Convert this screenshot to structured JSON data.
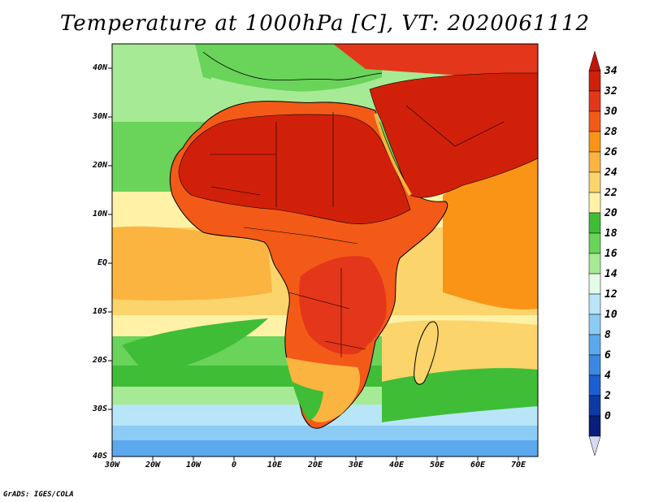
{
  "title": "Temperature at 1000hPa [C], VT: 2020061112",
  "footer": "GrADS: IGES/COLA",
  "map": {
    "lat_labels": [
      "40N",
      "30N",
      "20N",
      "10N",
      "EQ",
      "10S",
      "20S",
      "30S",
      "40S"
    ],
    "lon_labels": [
      "30W",
      "20W",
      "10W",
      "0",
      "10E",
      "20E",
      "30E",
      "40E",
      "50E",
      "60E",
      "70E"
    ],
    "lat_range": [
      -40,
      44
    ],
    "lon_range": [
      -30,
      75
    ]
  },
  "colorbar": {
    "labels": [
      "34",
      "32",
      "30",
      "28",
      "26",
      "24",
      "22",
      "20",
      "18",
      "16",
      "14",
      "12",
      "10",
      "8",
      "6",
      "4",
      "2",
      "0"
    ],
    "colors": [
      "#d1200a",
      "#e4361a",
      "#f35a17",
      "#f99416",
      "#fbb43f",
      "#fcd46c",
      "#fff2a6",
      "#3fbd36",
      "#69d35a",
      "#a7ea95",
      "#e4fbe7",
      "#b9e5f9",
      "#8ccbf4",
      "#5ba9ec",
      "#3b88e3",
      "#1c5fd1",
      "#0d3aa6",
      "#0a1e7c"
    ],
    "top_arrow_color": "#c21509",
    "bottom_arrow_color": "#d8d8f5"
  }
}
